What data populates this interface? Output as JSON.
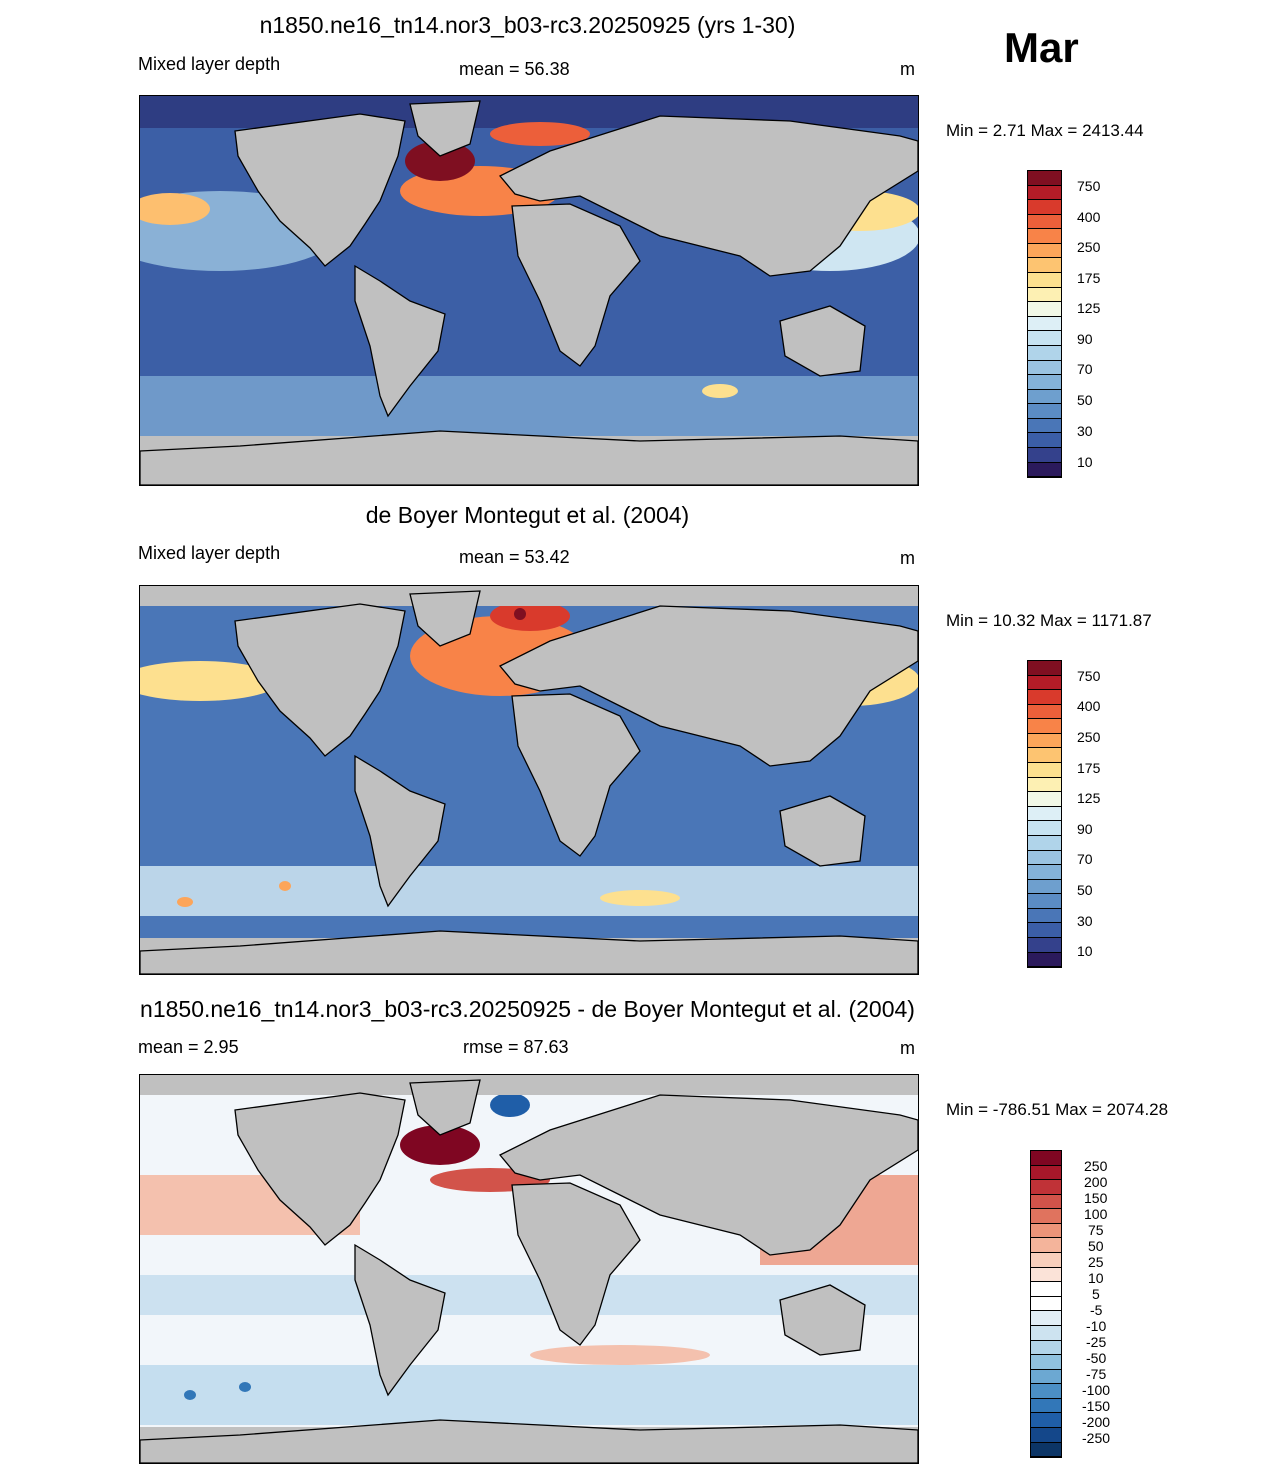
{
  "month": "Mar",
  "panels": [
    {
      "title": "n1850.ne16_tn14.nor3_b03-rc3.20250925 (yrs 1-30)",
      "left_label": "Mixed layer depth",
      "center_label": "mean =  56.38",
      "units": "m",
      "minmax": "Min =   2.71 Max = 2413.44",
      "colorbar": {
        "colors": [
          "#2b1a5c",
          "#34418c",
          "#3b5ea7",
          "#4a76b7",
          "#5b8cc4",
          "#6e9fce",
          "#84b2d9",
          "#9ac3e2",
          "#b0d4ea",
          "#c7e3f1",
          "#ddeff6",
          "#f1f8e7",
          "#fdf0b3",
          "#fde08f",
          "#fdc471",
          "#fca55a",
          "#f88348",
          "#ec5f3a",
          "#d93a2c",
          "#b41c27",
          "#7f0f21"
        ],
        "labels": [
          "750",
          "400",
          "250",
          "175",
          "125",
          "90",
          "70",
          "50",
          "30",
          "10"
        ]
      }
    },
    {
      "title": "de Boyer Montegut et al. (2004)",
      "left_label": "Mixed layer depth",
      "center_label": "mean =  53.42",
      "units": "m",
      "minmax": "Min =  10.32 Max = 1171.87",
      "colorbar": {
        "colors": [
          "#2b1a5c",
          "#34418c",
          "#3b5ea7",
          "#4a76b7",
          "#5b8cc4",
          "#6e9fce",
          "#84b2d9",
          "#9ac3e2",
          "#b0d4ea",
          "#c7e3f1",
          "#ddeff6",
          "#f1f8e7",
          "#fdf0b3",
          "#fde08f",
          "#fdc471",
          "#fca55a",
          "#f88348",
          "#ec5f3a",
          "#d93a2c",
          "#b41c27",
          "#7f0f21"
        ],
        "labels": [
          "750",
          "400",
          "250",
          "175",
          "125",
          "90",
          "70",
          "50",
          "30",
          "10"
        ]
      }
    },
    {
      "title": "n1850.ne16_tn14.nor3_b03-rc3.20250925 - de Boyer Montegut et al. (2004)",
      "left_label": "mean =   2.95",
      "center_label": "rmse =  87.63",
      "units": "m",
      "minmax": "Min = -786.51 Max = 2074.28",
      "colorbar": {
        "colors": [
          "#0c3566",
          "#14478a",
          "#1f5ea8",
          "#3277b8",
          "#4b8fc5",
          "#6ca8d2",
          "#90c1df",
          "#b2d4e9",
          "#cde3f0",
          "#e2eef6",
          "#ffffff",
          "#ffffff",
          "#fbe3d8",
          "#f8cfbc",
          "#f4b49b",
          "#ec9479",
          "#e0735e",
          "#d2534a",
          "#c03237",
          "#a7172a",
          "#7f0622"
        ],
        "labels": [
          "250",
          "200",
          "150",
          "100",
          "75",
          "50",
          "25",
          "10",
          "5",
          "-5",
          "-10",
          "-25",
          "-50",
          "-75",
          "-100",
          "-150",
          "-200",
          "-250"
        ]
      }
    }
  ]
}
